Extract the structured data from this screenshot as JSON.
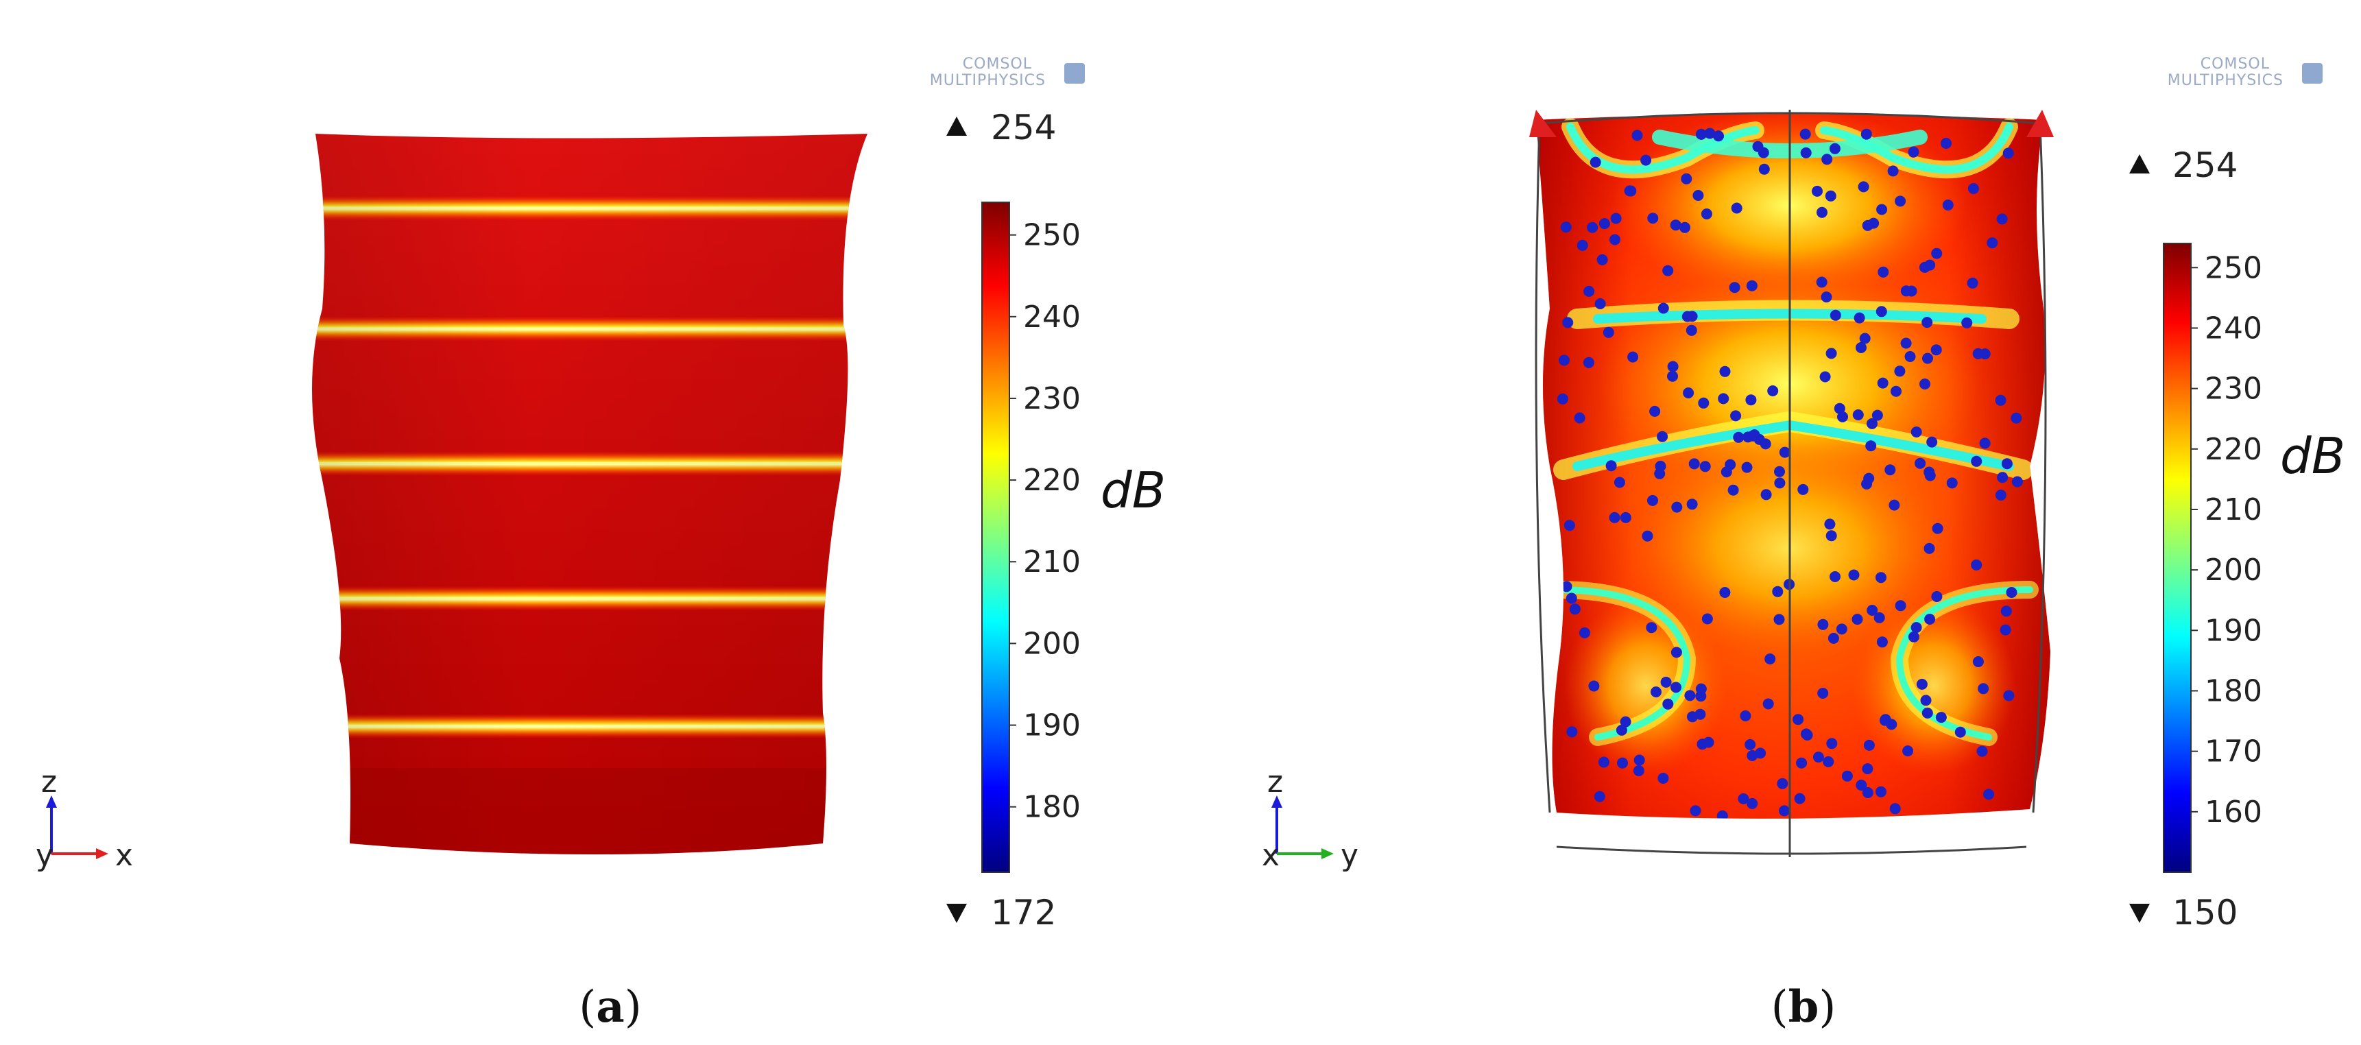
{
  "logo_text": [
    "COMSOL",
    "MULTIPHYSICS"
  ],
  "colors": {
    "colormap": [
      "#00007f",
      "#0000ff",
      "#0080ff",
      "#00ffff",
      "#80ff80",
      "#ffff00",
      "#ff8000",
      "#ff0000",
      "#7f0000"
    ],
    "scatter_points": "#1a22c8",
    "axis_z": "#1a1ad8",
    "axis_x": "#e02020",
    "axis_y": "#20b020"
  },
  "panels": [
    {
      "caption_open": "(",
      "caption_letter": "a",
      "caption_close": ")",
      "unit": "dB",
      "max_label": "254",
      "min_label": "172",
      "triad": {
        "vertical": "z",
        "depth": "y",
        "horizontal": "x"
      }
    },
    {
      "caption_open": "(",
      "caption_letter": "b",
      "caption_close": ")",
      "unit": "dB",
      "max_label": "254",
      "min_label": "150",
      "triad": {
        "vertical": "z",
        "depth": "x",
        "horizontal": "y"
      }
    }
  ],
  "chart_data": [
    {
      "type": "heatmap",
      "field": "surface sound pressure level",
      "colorbar": {
        "range": [
          172,
          254
        ],
        "max": 254,
        "min": 172,
        "ticks": [
          250,
          240,
          230,
          220,
          210,
          200,
          190,
          180
        ]
      },
      "bands_z_fraction": [
        0.1,
        0.27,
        0.46,
        0.65,
        0.83
      ],
      "base_level": 250,
      "band_level": 222
    },
    {
      "type": "heatmap",
      "field": "surface sound pressure level with scatter points",
      "colorbar": {
        "range": [
          150,
          254
        ],
        "max": 254,
        "min": 150,
        "ticks": [
          250,
          240,
          230,
          220,
          210,
          200,
          190,
          180,
          170,
          160
        ]
      },
      "base_level": 244,
      "scatter_point_count": 260
    }
  ]
}
